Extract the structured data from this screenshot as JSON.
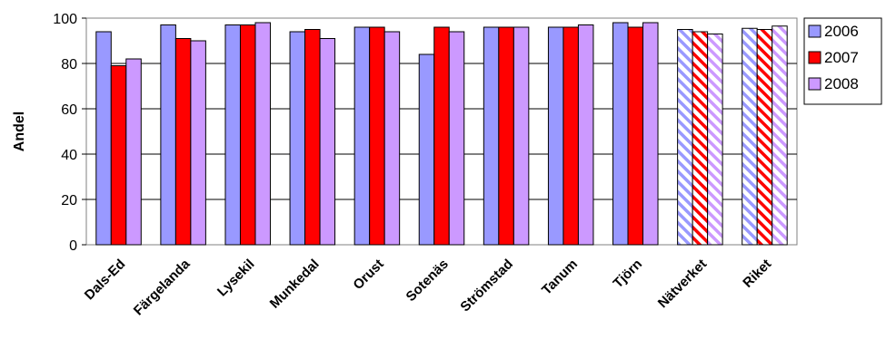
{
  "chart_data": {
    "type": "bar",
    "ylabel": "Andel",
    "xlabel": "",
    "ylim": [
      0,
      100
    ],
    "yticks": [
      0,
      20,
      40,
      60,
      80,
      100
    ],
    "grid": true,
    "legend_position": "right",
    "categories": [
      "Dals-Ed",
      "Färgelanda",
      "Lysekil",
      "Munkedal",
      "Orust",
      "Sotenäs",
      "Strömstad",
      "Tanum",
      "Tjörn",
      "Nätverket",
      "Riket"
    ],
    "hatched_categories": [
      "Nätverket",
      "Riket"
    ],
    "series": [
      {
        "name": "2006",
        "color": "#9999ff",
        "values": [
          94,
          97,
          97,
          94,
          96,
          84,
          96,
          96,
          98,
          95,
          95.5
        ]
      },
      {
        "name": "2007",
        "color": "#ff0000",
        "values": [
          79,
          91,
          97,
          95,
          96,
          96,
          96,
          96,
          96,
          94,
          95
        ]
      },
      {
        "name": "2008",
        "color": "#cc99ff",
        "values": [
          82,
          90,
          98,
          91,
          94,
          94,
          96,
          97,
          98,
          93,
          96.5
        ]
      }
    ]
  }
}
